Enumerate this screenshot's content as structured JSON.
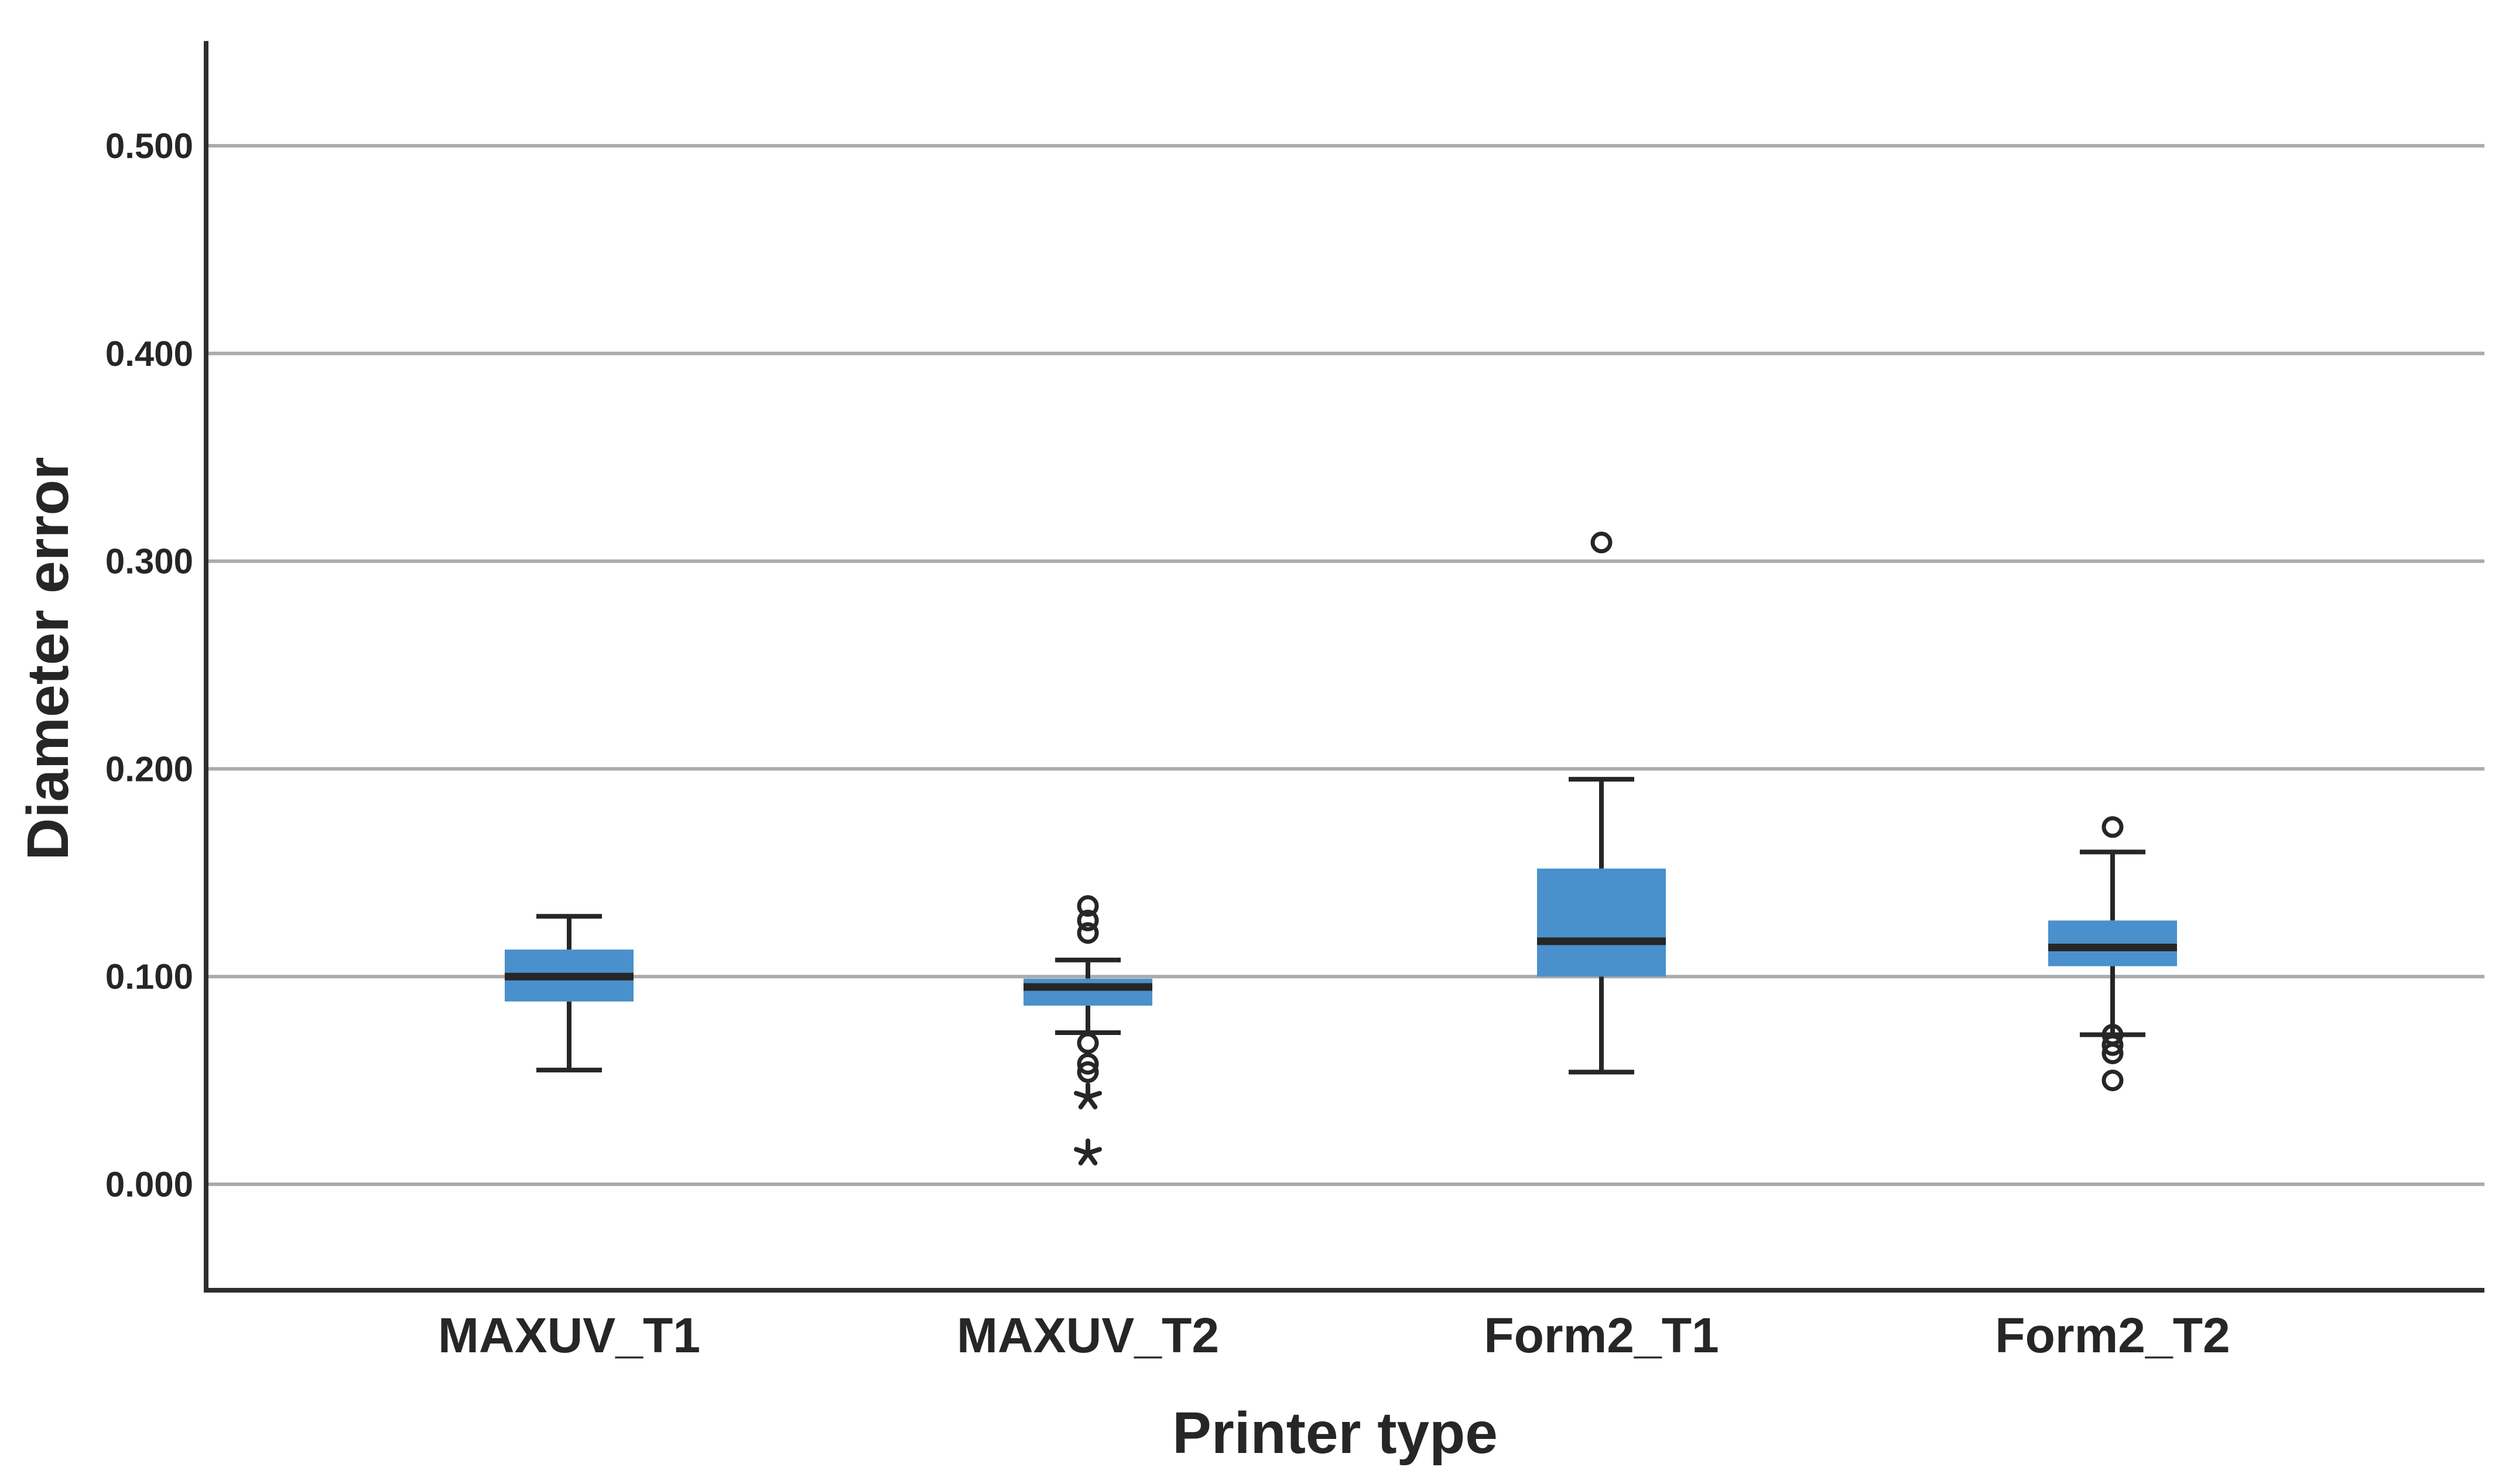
{
  "figure": {
    "background": "#FFFFFF"
  },
  "chart_data": {
    "type": "boxplot",
    "title": "",
    "xlabel": "Printer type",
    "ylabel": "Diameter error",
    "categories": [
      "MAXUV_T1",
      "MAXUV_T2",
      "Form2_T1",
      "Form2_T2"
    ],
    "y_tick_labels": [
      "0.000",
      "0.100",
      "0.200",
      "0.300",
      "0.400",
      "0.500"
    ],
    "y_tick_values": [
      0.0,
      0.1,
      0.2,
      0.3,
      0.4,
      0.5
    ],
    "y_axis_range_drawn": [
      -0.051,
      0.55
    ],
    "grid": true,
    "legend": false,
    "series": [
      {
        "category": "MAXUV_T1",
        "median": 0.1,
        "q1": 0.088,
        "q3": 0.113,
        "whisker_low": 0.055,
        "whisker_high": 0.129,
        "outliers": [],
        "extreme_outliers": []
      },
      {
        "category": "MAXUV_T2",
        "median": 0.095,
        "q1": 0.086,
        "q3": 0.099,
        "whisker_low": 0.073,
        "whisker_high": 0.108,
        "outliers": [
          0.134,
          0.127,
          0.121,
          0.068,
          0.058,
          0.054
        ],
        "extreme_outliers": [
          0.042,
          0.015
        ]
      },
      {
        "category": "Form2_T1",
        "median": 0.117,
        "q1": 0.1,
        "q3": 0.152,
        "whisker_low": 0.054,
        "whisker_high": 0.195,
        "outliers": [
          0.309
        ],
        "extreme_outliers": []
      },
      {
        "category": "Form2_T2",
        "median": 0.114,
        "q1": 0.105,
        "q3": 0.127,
        "whisker_low": 0.072,
        "whisker_high": 0.16,
        "outliers": [
          0.172,
          0.072,
          0.067,
          0.063,
          0.05
        ],
        "extreme_outliers": []
      }
    ],
    "colors": {
      "box_fill": "#4A90CC",
      "line": "#262626",
      "gridline": "#ABABAB",
      "axis": "#2E2E2E",
      "background": "#FFFFFF"
    }
  }
}
